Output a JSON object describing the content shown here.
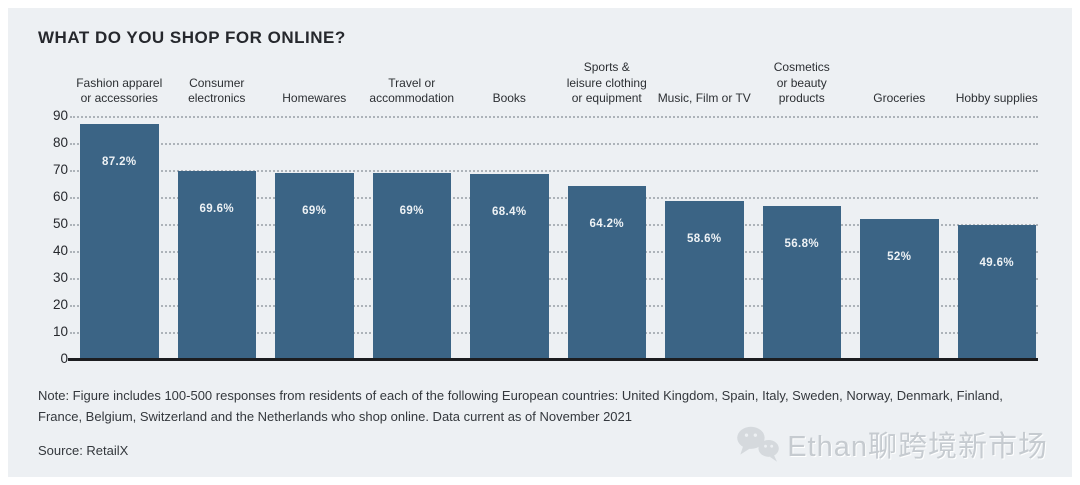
{
  "title": "WHAT DO YOU SHOP FOR ONLINE?",
  "chart_data": {
    "type": "bar",
    "categories": [
      "Fashion apparel\nor accessories",
      "Consumer\nelectronics",
      "Homewares",
      "Travel or\naccommodation",
      "Books",
      "Sports &\nleisure clothing\nor equipment",
      "Music, Film or TV",
      "Cosmetics\nor beauty\nproducts",
      "Groceries",
      "Hobby supplies"
    ],
    "values": [
      87.2,
      69.6,
      69,
      69,
      68.4,
      64.2,
      58.6,
      56.8,
      52,
      49.6
    ],
    "value_labels": [
      "87.2%",
      "69.6%",
      "69%",
      "69%",
      "68.4%",
      "64.2%",
      "58.6%",
      "56.8%",
      "52%",
      "49.6%"
    ],
    "ylim": [
      0,
      90
    ],
    "yticks": [
      90,
      80,
      70,
      60,
      50,
      40,
      30,
      20,
      10,
      0
    ],
    "grid": "horizontal-dotted",
    "legend": "none",
    "bar_color": "#3b6485",
    "panel_background": "#edf0f3"
  },
  "note": "Note: Figure includes 100-500 responses from residents of each of the following European countries: United Kingdom, Spain, Italy, Sweden, Norway, Denmark, Finland, France, Belgium, Switzerland and the Netherlands who shop online. Data current as of November 2021",
  "source": "Source: RetailX",
  "watermark": {
    "icon": "wechat-icon",
    "text": "Ethan聊跨境新市场"
  }
}
